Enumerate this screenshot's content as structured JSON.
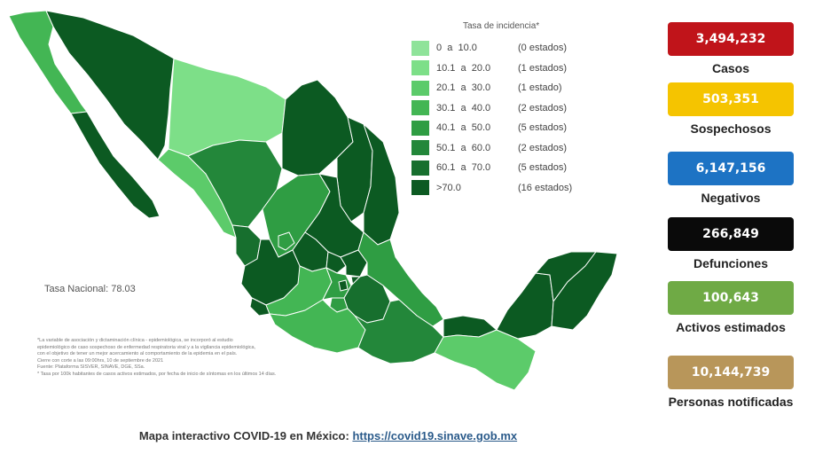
{
  "legend": {
    "title": "Tasa de incidencia*",
    "rows": [
      {
        "range": "0  a  10.0",
        "count": "(0 estados)",
        "color": "#8fe39a"
      },
      {
        "range": "10.1  a  20.0",
        "count": "(1 estados)",
        "color": "#7ddf88"
      },
      {
        "range": "20.1  a  30.0",
        "count": "(1 estado)",
        "color": "#5ccb6a"
      },
      {
        "range": "30.1  a  40.0",
        "count": "(2 estados)",
        "color": "#43b654"
      },
      {
        "range": "40.1  a  50.0",
        "count": "(5 estados)",
        "color": "#2f9d43"
      },
      {
        "range": "50.1  a  60.0",
        "count": "(2 estados)",
        "color": "#23873a"
      },
      {
        "range": "60.1  a  70.0",
        "count": "(5 estados)",
        "color": "#176f2e"
      },
      {
        "range": ">70.0",
        "count": "(16 estados)",
        "color": "#0c5a22"
      }
    ]
  },
  "tasa_nacional": "Tasa Nacional: 78.03",
  "notes": [
    "*La variable de asociación y dictaminación clínica - epidemiológica, se incorporó al estudio",
    "epidemiológico de caso sospechoso de enfermedad respiratoria viral y a la vigilancia epidemiológica,",
    "con el objetivo de tener un mejor acercamiento al comportamiento de la epidemia en el país.",
    "Cierre con corte a las 09:00hrs, 10 de septiembre de 2021",
    "Fuente: Plataforma SISVER, SINAVE, DGE, SSa.",
    "* Tasa por 100k habitantes de casos activos estimados, por fecha de inicio de síntomas en los últimos 14 días."
  ],
  "stats": [
    {
      "value": "3,494,232",
      "label": "Casos",
      "color": "#c0141a"
    },
    {
      "value": "503,351",
      "label": "Sospechosos",
      "color": "#f5c400"
    },
    {
      "value": "6,147,156",
      "label": "Negativos",
      "color": "#1d73c4"
    },
    {
      "value": "266,849",
      "label": "Defunciones",
      "color": "#0a0a0a"
    },
    {
      "value": "100,643",
      "label": "Activos estimados",
      "color": "#6faa45"
    },
    {
      "value": "10,144,739",
      "label": "Personas notificadas",
      "color": "#b8965a"
    }
  ],
  "footer": {
    "text": "Mapa interactivo COVID-19 en México: ",
    "link": "https://covid19.sinave.gob.mx"
  }
}
